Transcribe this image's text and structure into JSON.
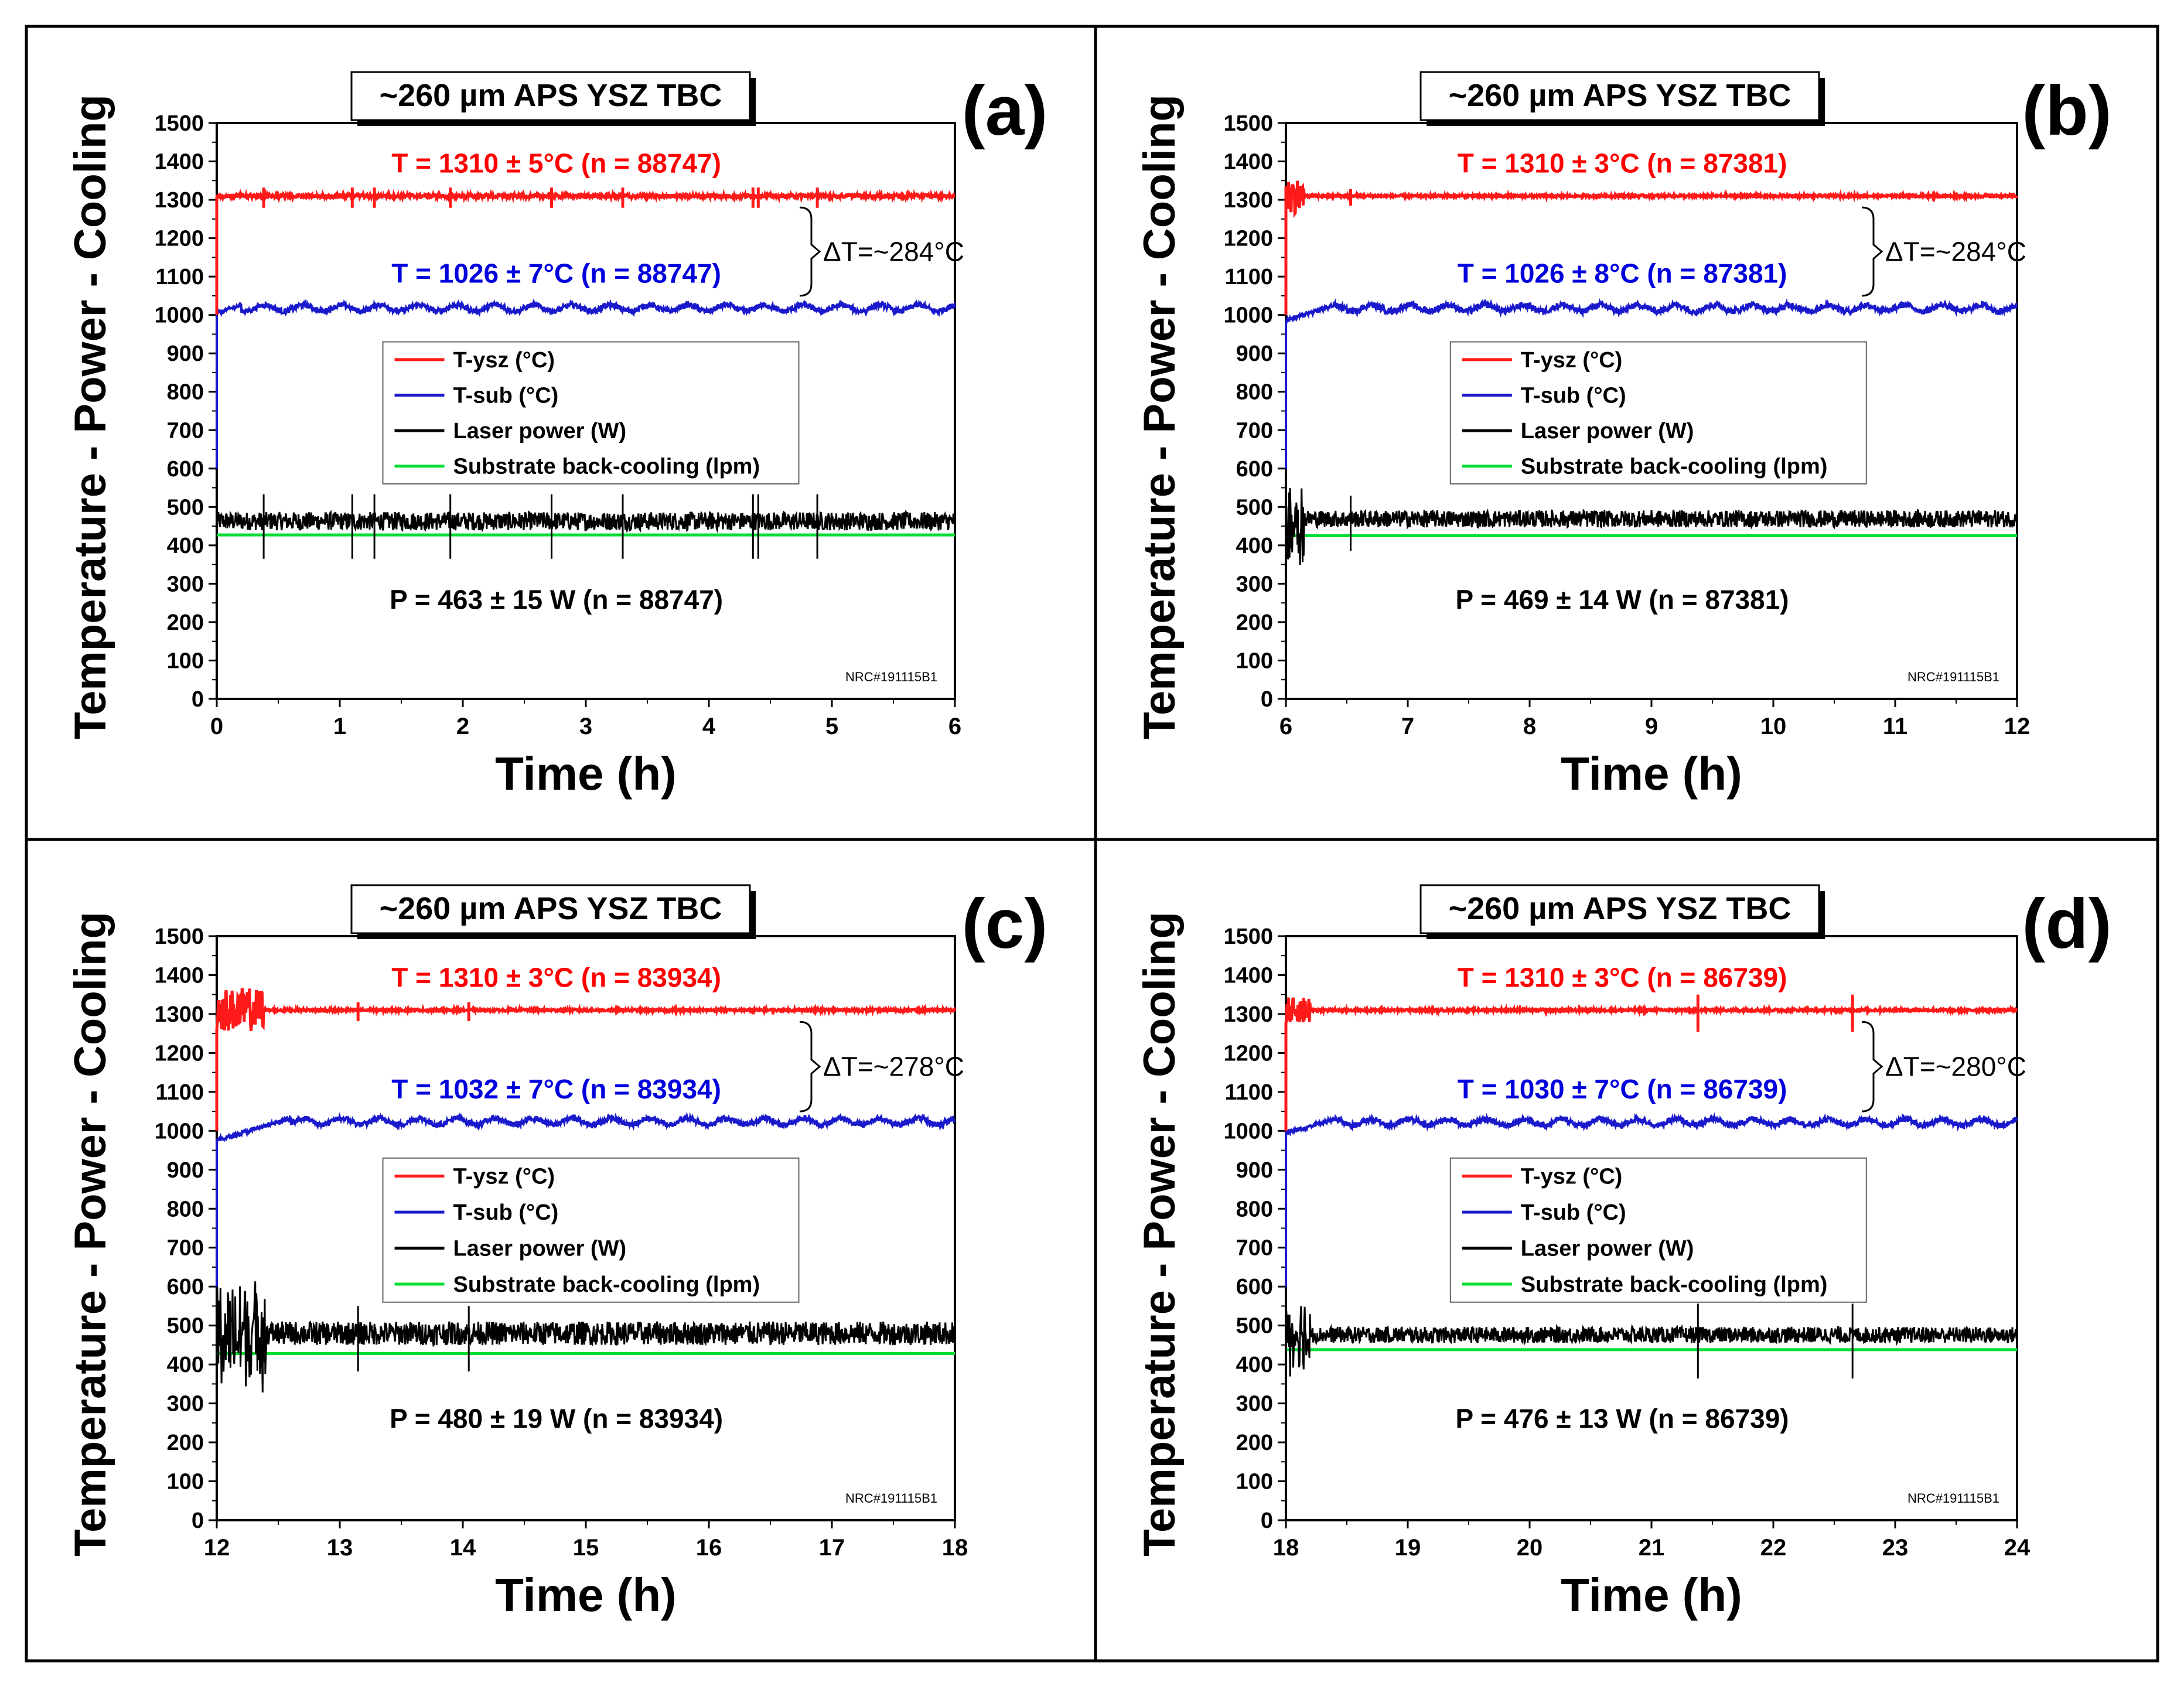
{
  "colors": {
    "tysz": "#ff1a1a",
    "tsub": "#1a1acc",
    "power": "#000000",
    "cooling": "#00dd33",
    "stat_red": "#ff0000",
    "stat_blue": "#0000dd",
    "frame": "#000000"
  },
  "common": {
    "ylabel": "Temperature - Power - Cooling",
    "xlabel": "Time (h)",
    "title": "~260 µm APS YSZ TBC",
    "watermark": "NRC#191115B1",
    "legend": [
      "T-ysz (°C)",
      "T-sub (°C)",
      "Laser power (W)",
      "Substrate back-cooling (lpm)"
    ],
    "yticks": [
      "0",
      "100",
      "200",
      "300",
      "400",
      "500",
      "600",
      "700",
      "800",
      "900",
      "1000",
      "1100",
      "1200",
      "1300",
      "1400",
      "1500"
    ]
  },
  "chart_data": [
    {
      "type": "line",
      "panel_label": "(a)",
      "xlim": [
        0,
        6
      ],
      "ylim": [
        0,
        1500
      ],
      "xticks": [
        "0",
        "1",
        "2",
        "3",
        "4",
        "5",
        "6"
      ],
      "stat_ysz": "T = 1310 ± 5°C (n = 88747)",
      "stat_sub": "T = 1026 ± 7°C (n = 88747)",
      "stat_power": "P = 463 ± 15 W (n = 88747)",
      "delta": "ΔT=~284°C",
      "series": [
        {
          "name": "T-ysz (°C)",
          "color": "#ff1a1a",
          "mean": 1310,
          "noise": 5,
          "start_low": 1000,
          "settle": 0,
          "spikes": [
            0.38,
            1.1,
            1.28,
            1.9,
            2.72,
            3.3,
            4.36,
            4.4,
            4.88
          ],
          "spike_amp": 22
        },
        {
          "name": "T-sub (°C)",
          "color": "#1a1acc",
          "mean": 1026,
          "noise": 7,
          "start_low": 600,
          "settle": 0.1,
          "dip": 1005,
          "ripple": 8
        },
        {
          "name": "Laser power (W)",
          "color": "#000000",
          "mean": 463,
          "noise": 15,
          "settle": 0,
          "spikes": [
            0.38,
            1.1,
            1.28,
            1.9,
            2.72,
            3.3,
            4.36,
            4.4,
            4.88
          ],
          "spike_amp": 70
        },
        {
          "name": "Substrate back-cooling (lpm)",
          "color": "#00dd33",
          "value": 427
        }
      ]
    },
    {
      "type": "line",
      "panel_label": "(b)",
      "xlim": [
        6,
        12
      ],
      "ylim": [
        0,
        1500
      ],
      "xticks": [
        "6",
        "7",
        "8",
        "9",
        "10",
        "11",
        "12"
      ],
      "stat_ysz": "T = 1310 ± 3°C (n = 87381)",
      "stat_sub": "T = 1026 ± 8°C (n = 87381)",
      "stat_power": "P = 469 ± 14 W (n = 87381)",
      "delta": "ΔT=~284°C",
      "series": [
        {
          "name": "T-ysz (°C)",
          "color": "#ff1a1a",
          "mean": 1310,
          "noise": 3,
          "start_low": 1000,
          "settle": 0.15,
          "settle_amp": 45,
          "spikes": [
            6.53
          ],
          "spike_amp": 18
        },
        {
          "name": "T-sub (°C)",
          "color": "#1a1acc",
          "mean": 1026,
          "noise": 8,
          "start_low": 600,
          "settle": 0.2,
          "dip": 985,
          "ripple": 8
        },
        {
          "name": "Laser power (W)",
          "color": "#000000",
          "mean": 469,
          "noise": 14,
          "settle": 0.15,
          "settle_amp": 110,
          "spikes": [
            6.53
          ],
          "spike_amp": 60
        },
        {
          "name": "Substrate back-cooling (lpm)",
          "color": "#00dd33",
          "value": 425
        }
      ]
    },
    {
      "type": "line",
      "panel_label": "(c)",
      "xlim": [
        12,
        18
      ],
      "ylim": [
        0,
        1500
      ],
      "xticks": [
        "12",
        "13",
        "14",
        "15",
        "16",
        "17",
        "18"
      ],
      "stat_ysz": "T = 1310 ± 3°C (n = 83934)",
      "stat_sub": "T = 1032 ± 7°C (n = 83934)",
      "stat_power": "P = 480 ± 19 W (n = 83934)",
      "delta": "ΔT=~278°C",
      "series": [
        {
          "name": "T-ysz (°C)",
          "color": "#ff1a1a",
          "mean": 1310,
          "noise": 3,
          "start_low": 1000,
          "settle": 0.38,
          "settle_amp": 55,
          "spikes": [
            13.15,
            14.05
          ],
          "spike_amp": 20
        },
        {
          "name": "T-sub (°C)",
          "color": "#1a1acc",
          "mean": 1032,
          "noise": 7,
          "start_low": 600,
          "settle": 0.3,
          "dip": 975,
          "ripple": 8
        },
        {
          "name": "Laser power (W)",
          "color": "#000000",
          "mean": 480,
          "noise": 19,
          "settle": 0.4,
          "settle_amp": 130,
          "spikes": [
            13.15,
            14.05
          ],
          "spike_amp": 70
        },
        {
          "name": "Substrate back-cooling (lpm)",
          "color": "#00dd33",
          "value": 428
        }
      ]
    },
    {
      "type": "line",
      "panel_label": "(d)",
      "xlim": [
        18,
        24
      ],
      "ylim": [
        0,
        1500
      ],
      "xticks": [
        "18",
        "19",
        "20",
        "21",
        "22",
        "23",
        "24"
      ],
      "stat_ysz": "T = 1310 ± 3°C (n = 86739)",
      "stat_sub": "T = 1030 ± 7°C (n = 86739)",
      "stat_power": "P = 476 ± 13 W (n = 86739)",
      "delta": "ΔT=~280°C",
      "series": [
        {
          "name": "T-ysz (°C)",
          "color": "#ff1a1a",
          "mean": 1310,
          "noise": 3,
          "start_low": 1000,
          "settle": 0.2,
          "settle_amp": 35,
          "spikes": [
            21.38,
            22.65
          ],
          "spike_amp": 40
        },
        {
          "name": "T-sub (°C)",
          "color": "#1a1acc",
          "mean": 1030,
          "noise": 7,
          "start_low": 600,
          "settle": 0.2,
          "dip": 995,
          "ripple": 8
        },
        {
          "name": "Laser power (W)",
          "color": "#000000",
          "mean": 476,
          "noise": 13,
          "settle": 0.2,
          "settle_amp": 90,
          "spikes": [
            21.38,
            22.65
          ],
          "spike_amp": 80
        },
        {
          "name": "Substrate back-cooling (lpm)",
          "color": "#00dd33",
          "value": 438
        }
      ]
    }
  ]
}
